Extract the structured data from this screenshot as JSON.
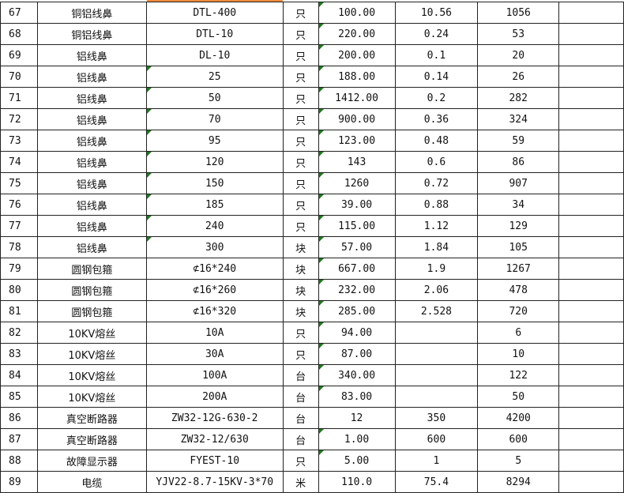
{
  "accent": "#f08a3c",
  "flag_color": "#1e7a1e",
  "rows": [
    {
      "no": "67",
      "name": "铜铝线鼻",
      "spec": "DTL-400",
      "unit": "只",
      "qty": "100.00",
      "price": "10.56",
      "amount": "1056",
      "sf": false,
      "qf": true
    },
    {
      "no": "68",
      "name": "铜铝线鼻",
      "spec": "DTL-10",
      "unit": "只",
      "qty": "220.00",
      "price": "0.24",
      "amount": "53",
      "sf": false,
      "qf": true
    },
    {
      "no": "69",
      "name": "铝线鼻",
      "spec": "DL-10",
      "unit": "只",
      "qty": "200.00",
      "price": "0.1",
      "amount": "20",
      "sf": false,
      "qf": true
    },
    {
      "no": "70",
      "name": "铝线鼻",
      "spec": "25",
      "unit": "只",
      "qty": "188.00",
      "price": "0.14",
      "amount": "26",
      "sf": true,
      "qf": true
    },
    {
      "no": "71",
      "name": "铝线鼻",
      "spec": "50",
      "unit": "只",
      "qty": "1412.00",
      "price": "0.2",
      "amount": "282",
      "sf": true,
      "qf": true
    },
    {
      "no": "72",
      "name": "铝线鼻",
      "spec": "70",
      "unit": "只",
      "qty": "900.00",
      "price": "0.36",
      "amount": "324",
      "sf": true,
      "qf": true
    },
    {
      "no": "73",
      "name": "铝线鼻",
      "spec": "95",
      "unit": "只",
      "qty": "123.00",
      "price": "0.48",
      "amount": "59",
      "sf": true,
      "qf": true
    },
    {
      "no": "74",
      "name": "铝线鼻",
      "spec": "120",
      "unit": "只",
      "qty": "143",
      "price": "0.6",
      "amount": "86",
      "sf": true,
      "qf": true
    },
    {
      "no": "75",
      "name": "铝线鼻",
      "spec": "150",
      "unit": "只",
      "qty": "1260",
      "price": "0.72",
      "amount": "907",
      "sf": true,
      "qf": true
    },
    {
      "no": "76",
      "name": "铝线鼻",
      "spec": "185",
      "unit": "只",
      "qty": "39.00",
      "price": "0.88",
      "amount": "34",
      "sf": true,
      "qf": true
    },
    {
      "no": "77",
      "name": "铝线鼻",
      "spec": "240",
      "unit": "只",
      "qty": "115.00",
      "price": "1.12",
      "amount": "129",
      "sf": true,
      "qf": true
    },
    {
      "no": "78",
      "name": "铝线鼻",
      "spec": "300",
      "unit": "块",
      "qty": "57.00",
      "price": "1.84",
      "amount": "105",
      "sf": true,
      "qf": true
    },
    {
      "no": "79",
      "name": "圆钢包箍",
      "spec": "⊄16*240",
      "unit": "块",
      "qty": "667.00",
      "price": "1.9",
      "amount": "1267",
      "sf": false,
      "qf": true
    },
    {
      "no": "80",
      "name": "圆钢包箍",
      "spec": "⊄16*260",
      "unit": "块",
      "qty": "232.00",
      "price": "2.06",
      "amount": "478",
      "sf": false,
      "qf": true
    },
    {
      "no": "81",
      "name": "圆钢包箍",
      "spec": "⊄16*320",
      "unit": "块",
      "qty": "285.00",
      "price": "2.528",
      "amount": "720",
      "sf": false,
      "qf": true
    },
    {
      "no": "82",
      "name": "10KV熔丝",
      "spec": "10A",
      "unit": "只",
      "qty": "94.00",
      "price": "",
      "amount": "6",
      "sf": false,
      "qf": true
    },
    {
      "no": "83",
      "name": "10KV熔丝",
      "spec": "30A",
      "unit": "只",
      "qty": "87.00",
      "price": "",
      "amount": "10",
      "sf": false,
      "qf": true
    },
    {
      "no": "84",
      "name": "10KV熔丝",
      "spec": "100A",
      "unit": "台",
      "qty": "340.00",
      "price": "",
      "amount": "122",
      "sf": false,
      "qf": true
    },
    {
      "no": "85",
      "name": "10KV熔丝",
      "spec": "200A",
      "unit": "台",
      "qty": "83.00",
      "price": "",
      "amount": "50",
      "sf": false,
      "qf": true
    },
    {
      "no": "86",
      "name": "真空断路器",
      "spec": "ZW32-12G-630-2",
      "unit": "台",
      "qty": "12",
      "price": "350",
      "amount": "4200",
      "sf": false,
      "qf": false
    },
    {
      "no": "87",
      "name": "真空断路器",
      "spec": "ZW32-12/630",
      "unit": "台",
      "qty": "1.00",
      "price": "600",
      "amount": "600",
      "sf": false,
      "qf": true
    },
    {
      "no": "88",
      "name": "故障显示器",
      "spec": "FYEST-10",
      "unit": "只",
      "qty": "5.00",
      "price": "1",
      "amount": "5",
      "sf": false,
      "qf": true
    },
    {
      "no": "89",
      "name": "电缆",
      "spec": "YJV22-8.7-15KV-3*70",
      "unit": "米",
      "qty": "110.0",
      "price": "75.4",
      "amount": "8294",
      "sf": false,
      "qf": false
    }
  ]
}
